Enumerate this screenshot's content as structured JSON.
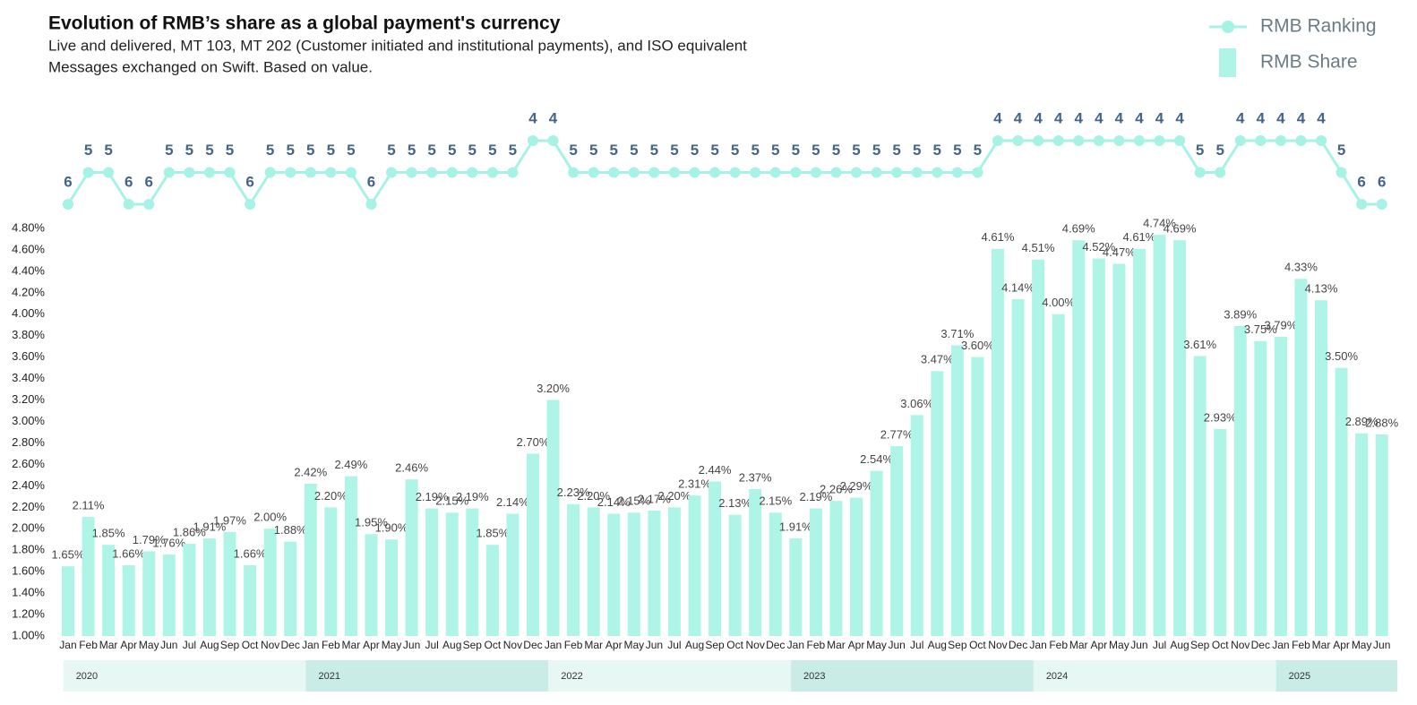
{
  "chart_data": {
    "type": "bar_line",
    "title": "Evolution of RMB’s share as a global payment's currency",
    "subtitle": [
      "Live and delivered, MT 103, MT 202 (Customer initiated and institutional payments), and ISO equivalent",
      "Messages exchanged on Swift. Based on value."
    ],
    "years": [
      {
        "name": "2020",
        "months": [
          "Jan",
          "Feb",
          "Mar",
          "Apr",
          "May",
          "Jun",
          "Jul",
          "Aug",
          "Sep",
          "Oct",
          "Nov",
          "Dec"
        ]
      },
      {
        "name": "2021",
        "months": [
          "Jan",
          "Feb",
          "Mar",
          "Apr",
          "May",
          "Jun",
          "Jul",
          "Aug",
          "Sep",
          "Oct",
          "Nov",
          "Dec"
        ]
      },
      {
        "name": "2022",
        "months": [
          "Jan",
          "Feb",
          "Mar",
          "Apr",
          "May",
          "Jun",
          "Jul",
          "Aug",
          "Sep",
          "Oct",
          "Nov",
          "Dec"
        ]
      },
      {
        "name": "2023",
        "months": [
          "Jan",
          "Feb",
          "Mar",
          "Apr",
          "May",
          "Jun",
          "Jul",
          "Aug",
          "Sep",
          "Oct",
          "Nov",
          "Dec"
        ]
      },
      {
        "name": "2024",
        "months": [
          "Jan",
          "Feb",
          "Mar",
          "Apr",
          "May",
          "Jun",
          "Jul",
          "Aug",
          "Sep",
          "Oct",
          "Nov",
          "Dec"
        ]
      },
      {
        "name": "2025",
        "months": [
          "Jan",
          "Feb",
          "Mar",
          "Apr",
          "May",
          "Jun"
        ]
      }
    ],
    "series": [
      {
        "name": "RMB Share",
        "color": "#aef5e8",
        "kind": "bar",
        "values": [
          1.65,
          2.11,
          1.85,
          1.66,
          1.79,
          1.76,
          1.86,
          1.91,
          1.97,
          1.66,
          2.0,
          1.88,
          2.42,
          2.2,
          2.49,
          1.95,
          1.9,
          2.46,
          2.19,
          2.15,
          2.19,
          1.85,
          2.14,
          2.7,
          3.2,
          2.23,
          2.2,
          2.14,
          2.15,
          2.17,
          2.2,
          2.31,
          2.44,
          2.13,
          2.37,
          2.15,
          1.91,
          2.19,
          2.26,
          2.29,
          2.54,
          2.77,
          3.06,
          3.47,
          3.71,
          3.6,
          4.61,
          4.14,
          4.51,
          4.0,
          4.69,
          4.52,
          4.47,
          4.61,
          4.74,
          4.69,
          3.61,
          2.93,
          3.89,
          3.75,
          3.79,
          4.33,
          4.13,
          3.5,
          2.89,
          2.88
        ],
        "value_labels": [
          "1.65%",
          "2.11%",
          "1.85%",
          "1.66%",
          "1.79%",
          "1.76%",
          "1.86%",
          "1.91%",
          "1.97%",
          "1.66%",
          "2.00%",
          "1.88%",
          "2.42%",
          "2.20%",
          "2.49%",
          "1.95%",
          "1.90%",
          "2.46%",
          "2.19%",
          "2.15%",
          "2.19%",
          "1.85%",
          "2.14%",
          "2.70%",
          "3.20%",
          "2.23%",
          "2.20%",
          "2.14%",
          "2.15%",
          "2.17%",
          "2.20%",
          "2.31%",
          "2.44%",
          "2.13%",
          "2.37%",
          "2.15%",
          "1.91%",
          "2.19%",
          "2.26%",
          "2.29%",
          "2.54%",
          "2.77%",
          "3.06%",
          "3.47%",
          "3.71%",
          "3.60%",
          "4.61%",
          "4.14%",
          "4.51%",
          "4.00%",
          "4.69%",
          "4.52%",
          "4.47%",
          "4.61%",
          "4.74%",
          "4.69%",
          "3.61%",
          "2.93%",
          "3.89%",
          "3.75%",
          "3.79%",
          "4.33%",
          "4.13%",
          "3.50%",
          "2.89%",
          "2.88%"
        ]
      },
      {
        "name": "RMB Ranking",
        "color": "#a6f2e4",
        "kind": "line",
        "axis": "y2",
        "values": [
          6,
          5,
          5,
          6,
          6,
          5,
          5,
          5,
          5,
          6,
          5,
          5,
          5,
          5,
          5,
          6,
          5,
          5,
          5,
          5,
          5,
          5,
          5,
          4,
          4,
          5,
          5,
          5,
          5,
          5,
          5,
          5,
          5,
          5,
          5,
          5,
          5,
          5,
          5,
          5,
          5,
          5,
          5,
          5,
          5,
          5,
          4,
          4,
          4,
          4,
          4,
          4,
          4,
          4,
          4,
          4,
          5,
          5,
          4,
          4,
          4,
          4,
          4,
          5,
          6,
          6
        ]
      }
    ],
    "ylim": [
      1.0,
      4.8
    ],
    "yticks": [
      {
        "value": 1.0,
        "label": "1.00%"
      },
      {
        "value": 1.2,
        "label": "1.20%"
      },
      {
        "value": 1.4,
        "label": "1.40%"
      },
      {
        "value": 1.6,
        "label": "1.60%"
      },
      {
        "value": 1.8,
        "label": "1.80%"
      },
      {
        "value": 2.0,
        "label": "2.00%"
      },
      {
        "value": 2.2,
        "label": "2.20%"
      },
      {
        "value": 2.4,
        "label": "2.40%"
      },
      {
        "value": 2.6,
        "label": "2.60%"
      },
      {
        "value": 2.8,
        "label": "2.80%"
      },
      {
        "value": 3.0,
        "label": "3.00%"
      },
      {
        "value": 3.2,
        "label": "3.20%"
      },
      {
        "value": 3.4,
        "label": "3.40%"
      },
      {
        "value": 3.6,
        "label": "3.60%"
      },
      {
        "value": 3.8,
        "label": "3.80%"
      },
      {
        "value": 4.0,
        "label": "4.00%"
      },
      {
        "value": 4.2,
        "label": "4.20%"
      },
      {
        "value": 4.4,
        "label": "4.40%"
      },
      {
        "value": 4.6,
        "label": "4.60%"
      },
      {
        "value": 4.8,
        "label": "4.80%"
      }
    ],
    "y2lim": [
      7,
      3
    ],
    "legend": "top-right"
  }
}
